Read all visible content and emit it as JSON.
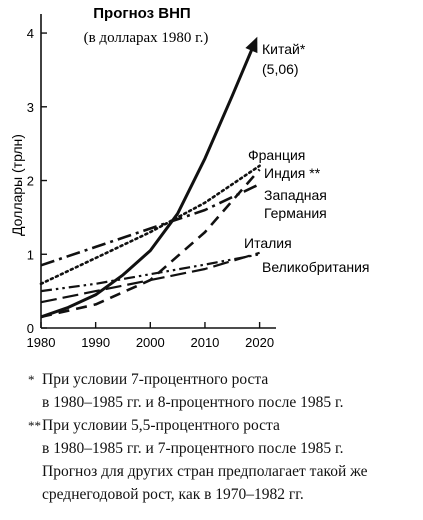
{
  "chart_data": {
    "type": "line",
    "title": "Прогноз ВНП",
    "subtitle": "(в долларах 1980 г.)",
    "ylabel": "Доллары (трлн)",
    "xlabel": "",
    "xlim": [
      1980,
      2023
    ],
    "ylim": [
      0,
      4.15
    ],
    "x_ticks": [
      "1980",
      "1990",
      "2000",
      "2010",
      "2020"
    ],
    "y_ticks": [
      "0",
      "1",
      "2",
      "3",
      "4"
    ],
    "grid": false,
    "legend": "inline labels at line ends",
    "series": [
      {
        "name": "Китай*",
        "annotation": "(5,06)",
        "style": "solid",
        "arrow": true,
        "x": [
          1980,
          1985,
          1990,
          1995,
          2000,
          2005,
          2010,
          2015,
          2019
        ],
        "y": [
          0.15,
          0.28,
          0.45,
          0.72,
          1.05,
          1.55,
          2.3,
          3.15,
          3.85
        ]
      },
      {
        "name": "Франция",
        "style": "dotted",
        "x": [
          1980,
          1990,
          2000,
          2010,
          2020
        ],
        "y": [
          0.6,
          0.95,
          1.3,
          1.7,
          2.2
        ]
      },
      {
        "name": "Индия **",
        "style": "dashed",
        "x": [
          1980,
          1990,
          2000,
          2010,
          2020
        ],
        "y": [
          0.15,
          0.32,
          0.65,
          1.3,
          2.15
        ]
      },
      {
        "name": "Западная Германия",
        "style": "dash-dot",
        "x": [
          1980,
          1990,
          2000,
          2010,
          2020
        ],
        "y": [
          0.85,
          1.1,
          1.35,
          1.6,
          1.95
        ]
      },
      {
        "name": "Италия",
        "style": "long-dash",
        "x": [
          1980,
          1990,
          2000,
          2010,
          2020
        ],
        "y": [
          0.35,
          0.5,
          0.65,
          0.8,
          1.02
        ]
      },
      {
        "name": "Великобритания",
        "style": "dash-dot-dot",
        "x": [
          1980,
          1990,
          2000,
          2010,
          2020
        ],
        "y": [
          0.5,
          0.6,
          0.73,
          0.86,
          1.0
        ]
      }
    ]
  },
  "notes": [
    {
      "mark": "*",
      "text": "При условии 7-процентного роста\nв 1980–1985 гг. и 8-процентного после 1985 г."
    },
    {
      "mark": "**",
      "text": "При условии 5,5-процентного роста\nв 1980–1985 гг. и 7-процентного после 1985 г."
    },
    {
      "mark": "",
      "text": "Прогноз для других стран предполагает такой же\nсреднегодовой рост, как в 1970–1982 гг."
    }
  ]
}
